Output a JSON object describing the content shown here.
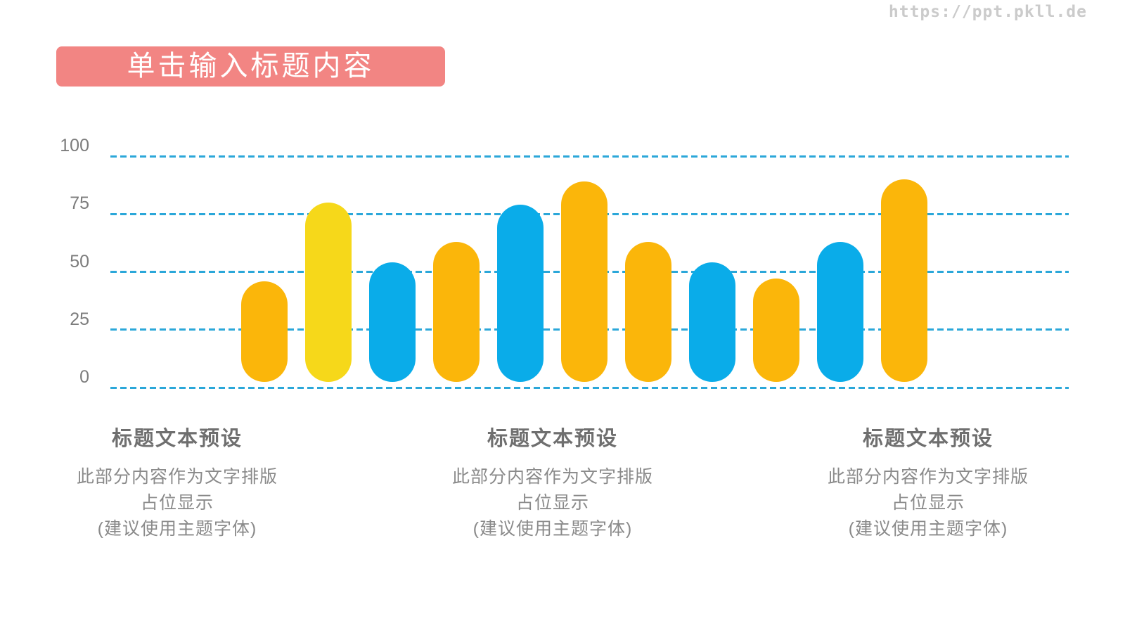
{
  "watermark": "https://ppt.pkll.de",
  "header": {
    "title": "单击输入标题内容",
    "banner_color": "#F28583",
    "text_color": "#FFFFFF"
  },
  "chart_data": {
    "type": "bar",
    "title": "",
    "xlabel": "",
    "ylabel": "",
    "ylim": [
      0,
      100
    ],
    "yticks": [
      100,
      75,
      50,
      25,
      0
    ],
    "grid": "horizontal dashed lines at each y tick",
    "legend": "none",
    "gridline_color": "#2BA7D9",
    "axis_label_color": "#7C7C7C",
    "series_colors": {
      "orange": "#FBB60A",
      "yellow": "#F6D81A",
      "blue": "#0AACE9"
    },
    "bars": [
      {
        "value": 46,
        "color": "orange"
      },
      {
        "value": 80,
        "color": "yellow"
      },
      {
        "value": 54,
        "color": "blue"
      },
      {
        "value": 63,
        "color": "orange"
      },
      {
        "value": 79,
        "color": "blue"
      },
      {
        "value": 89,
        "color": "orange"
      },
      {
        "value": 63,
        "color": "orange"
      },
      {
        "value": 54,
        "color": "blue"
      },
      {
        "value": 47,
        "color": "orange"
      },
      {
        "value": 63,
        "color": "blue"
      },
      {
        "value": 90,
        "color": "orange"
      }
    ]
  },
  "columns": [
    {
      "title": "标题文本预设",
      "lines": [
        "此部分内容作为文字排版",
        "占位显示",
        "(建议使用主题字体)"
      ]
    },
    {
      "title": "标题文本预设",
      "lines": [
        "此部分内容作为文字排版",
        "占位显示",
        "(建议使用主题字体)"
      ]
    },
    {
      "title": "标题文本预设",
      "lines": [
        "此部分内容作为文字排版",
        "占位显示",
        "(建议使用主题字体)"
      ]
    }
  ]
}
